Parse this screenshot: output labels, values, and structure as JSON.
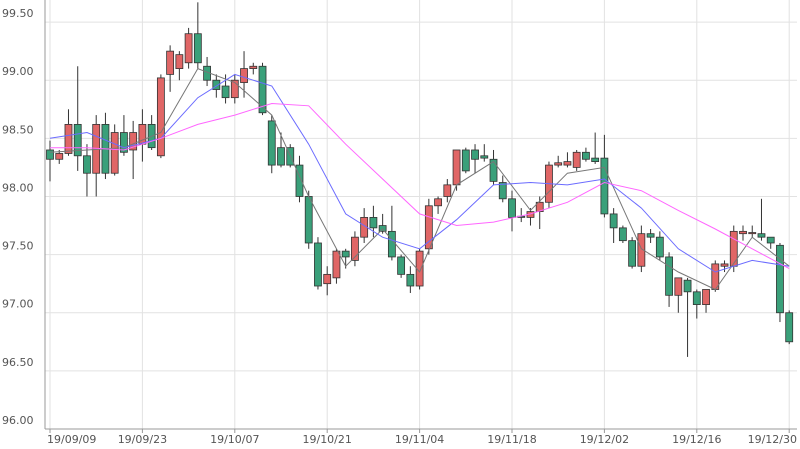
{
  "chart_data": {
    "type": "candlestick",
    "categories": [
      "19/09/09",
      null,
      null,
      null,
      null,
      null,
      null,
      null,
      null,
      null,
      "19/09/23",
      null,
      null,
      null,
      null,
      null,
      null,
      null,
      null,
      null,
      "19/10/07",
      null,
      null,
      null,
      null,
      null,
      null,
      null,
      null,
      null,
      "19/10/21",
      null,
      null,
      null,
      null,
      null,
      null,
      null,
      null,
      null,
      "19/11/04",
      null,
      null,
      null,
      null,
      null,
      null,
      null,
      null,
      null,
      "19/11/18",
      null,
      null,
      null,
      null,
      null,
      null,
      null,
      null,
      null,
      "19/12/02",
      null,
      null,
      null,
      null,
      null,
      null,
      null,
      null,
      null,
      "19/12/16",
      null,
      null,
      null,
      null,
      null,
      null,
      null,
      null,
      null,
      "19/12/30"
    ],
    "open": [
      98.4,
      98.32,
      98.37,
      98.62,
      98.35,
      98.2,
      98.62,
      98.2,
      98.55,
      98.4,
      98.45,
      98.62,
      98.35,
      99.05,
      99.1,
      99.15,
      99.4,
      99.12,
      99.0,
      98.95,
      98.85,
      98.98,
      99.1,
      99.12,
      98.65,
      98.42,
      98.42,
      98.27,
      98.0,
      97.6,
      97.25,
      97.3,
      97.53,
      97.45,
      97.65,
      97.82,
      97.75,
      97.7,
      97.48,
      97.33,
      97.23,
      97.55,
      97.92,
      98.0,
      98.1,
      98.4,
      98.4,
      98.35,
      98.32,
      98.12,
      97.98,
      97.83,
      97.82,
      97.87,
      97.95,
      98.27,
      98.27,
      98.25,
      98.38,
      98.33,
      98.33,
      97.85,
      97.73,
      97.62,
      97.4,
      97.68,
      97.65,
      97.48,
      97.15,
      97.28,
      97.18,
      97.07,
      97.2,
      97.4,
      97.4,
      97.68,
      97.68,
      97.68,
      97.65,
      97.58,
      97.0
    ],
    "high": [
      98.48,
      98.4,
      98.75,
      99.12,
      98.45,
      98.7,
      98.72,
      98.62,
      98.7,
      98.65,
      98.75,
      98.7,
      99.05,
      99.3,
      99.25,
      99.45,
      99.67,
      99.2,
      99.05,
      99.05,
      99.05,
      99.25,
      99.15,
      99.15,
      98.7,
      98.55,
      98.45,
      98.35,
      98.05,
      97.65,
      97.4,
      97.55,
      97.55,
      97.7,
      97.9,
      97.92,
      97.85,
      97.92,
      97.5,
      97.4,
      97.55,
      97.98,
      98.0,
      98.15,
      98.4,
      98.42,
      98.45,
      98.45,
      98.4,
      98.18,
      98.05,
      97.9,
      97.9,
      98.0,
      98.3,
      98.35,
      98.38,
      98.4,
      98.42,
      98.55,
      98.53,
      97.9,
      97.75,
      97.65,
      97.75,
      97.72,
      97.7,
      97.52,
      97.3,
      97.3,
      97.2,
      97.2,
      97.45,
      97.45,
      97.75,
      97.75,
      97.75,
      97.98,
      97.65,
      97.6,
      97.02
    ],
    "low": [
      98.13,
      98.28,
      98.35,
      98.22,
      98.0,
      98.0,
      98.15,
      98.18,
      98.35,
      98.15,
      98.3,
      98.4,
      98.33,
      98.9,
      99.0,
      99.1,
      99.1,
      98.95,
      98.85,
      98.8,
      98.8,
      98.85,
      99.05,
      98.7,
      98.2,
      98.25,
      98.25,
      97.95,
      97.55,
      97.2,
      97.15,
      97.25,
      97.38,
      97.4,
      97.6,
      97.65,
      97.68,
      97.45,
      97.3,
      97.17,
      97.2,
      97.5,
      97.85,
      97.95,
      98.05,
      98.2,
      98.2,
      98.3,
      98.1,
      97.95,
      97.7,
      97.78,
      97.75,
      97.72,
      97.9,
      98.25,
      98.25,
      98.22,
      98.3,
      98.28,
      97.82,
      97.6,
      97.6,
      97.38,
      97.35,
      97.6,
      97.45,
      97.05,
      97.0,
      96.62,
      96.95,
      97.0,
      97.18,
      97.35,
      97.35,
      97.62,
      97.65,
      97.62,
      97.55,
      96.92,
      96.73
    ],
    "close": [
      98.32,
      98.37,
      98.62,
      98.35,
      98.2,
      98.62,
      98.2,
      98.55,
      98.38,
      98.55,
      98.62,
      98.42,
      99.02,
      99.25,
      99.22,
      99.4,
      99.15,
      99.0,
      98.92,
      98.85,
      99.0,
      99.1,
      99.12,
      98.72,
      98.27,
      98.27,
      98.27,
      98.0,
      97.6,
      97.23,
      97.33,
      97.53,
      97.48,
      97.65,
      97.82,
      97.73,
      97.7,
      97.48,
      97.33,
      97.23,
      97.53,
      97.92,
      97.98,
      98.1,
      98.4,
      98.22,
      98.32,
      98.33,
      98.13,
      97.98,
      97.82,
      97.82,
      97.87,
      97.95,
      98.27,
      98.29,
      98.3,
      98.38,
      98.32,
      98.3,
      97.85,
      97.73,
      97.62,
      97.4,
      97.68,
      97.65,
      97.48,
      97.15,
      97.3,
      97.18,
      97.07,
      97.2,
      97.42,
      97.42,
      97.7,
      97.7,
      97.69,
      97.65,
      97.6,
      97.0,
      96.75
    ],
    "up_color": "#e06666",
    "down_color": "#3aa07a",
    "lines": [
      {
        "color": "#777777",
        "x": [
          0,
          4,
          8,
          12,
          16,
          20,
          24,
          28,
          32,
          36,
          40,
          44,
          48,
          52,
          56,
          60,
          64,
          68,
          72,
          76,
          80
        ],
        "values": [
          98.38,
          98.4,
          98.42,
          98.55,
          99.1,
          98.98,
          98.7,
          98.0,
          97.4,
          97.72,
          97.35,
          98.1,
          98.3,
          97.88,
          98.2,
          98.25,
          97.55,
          97.35,
          97.2,
          97.65,
          97.4
        ]
      },
      {
        "color": "#6b6bff",
        "x": [
          0,
          4,
          8,
          12,
          16,
          20,
          24,
          28,
          32,
          36,
          40,
          44,
          48,
          52,
          56,
          60,
          64,
          68,
          72,
          76,
          80
        ],
        "values": [
          98.5,
          98.55,
          98.42,
          98.5,
          98.85,
          99.05,
          98.95,
          98.45,
          97.85,
          97.65,
          97.55,
          97.8,
          98.1,
          98.12,
          98.1,
          98.15,
          97.9,
          97.55,
          97.35,
          97.45,
          97.4
        ]
      },
      {
        "color": "#ff66ff",
        "x": [
          0,
          4,
          8,
          12,
          16,
          20,
          24,
          28,
          32,
          36,
          40,
          44,
          48,
          52,
          56,
          60,
          64,
          68,
          72,
          76,
          80
        ],
        "values": [
          98.42,
          98.42,
          98.4,
          98.5,
          98.62,
          98.7,
          98.8,
          98.78,
          98.45,
          98.15,
          97.85,
          97.75,
          97.78,
          97.85,
          97.95,
          98.12,
          98.05,
          97.88,
          97.72,
          97.55,
          97.38
        ]
      }
    ],
    "ylim": [
      96,
      99.69
    ],
    "yticks": [
      {
        "value": 96,
        "label": "96.00"
      },
      {
        "value": 96.5,
        "label": "96.50"
      },
      {
        "value": 97,
        "label": "97.00"
      },
      {
        "value": 97.5,
        "label": "97.50"
      },
      {
        "value": 98,
        "label": "98.00"
      },
      {
        "value": 98.5,
        "label": "98.50"
      },
      {
        "value": 99,
        "label": "99.00"
      },
      {
        "value": 99.5,
        "label": "99.50"
      }
    ],
    "grid": true
  }
}
